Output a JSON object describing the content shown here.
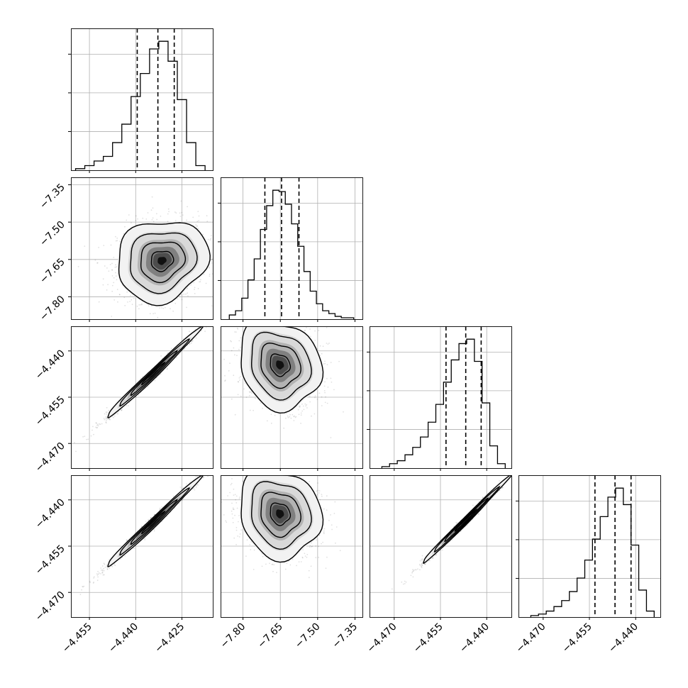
{
  "chart_data": {
    "type": "corner",
    "parameters": 4,
    "grid": true,
    "colors": {
      "line": "#000000",
      "grid": "#b0b0b0",
      "frame": "#000000"
    },
    "axes": [
      {
        "range": [
          -4.461,
          -4.415
        ],
        "ticks": [
          -4.455,
          -4.44,
          -4.425
        ],
        "tick_labels": [
          "−4.455",
          "−4.440",
          "−4.425"
        ]
      },
      {
        "range": [
          -7.89,
          -7.32
        ],
        "ticks": [
          -7.8,
          -7.65,
          -7.5,
          -7.35
        ],
        "tick_labels": [
          "−7.80",
          "−7.65",
          "−7.50",
          "−7.35"
        ]
      },
      {
        "range": [
          -4.478,
          -4.432
        ],
        "ticks": [
          -4.47,
          -4.455,
          -4.44
        ],
        "tick_labels": [
          "−4.470",
          "−4.455",
          "−4.440"
        ]
      },
      {
        "range": [
          -4.478,
          -4.432
        ],
        "ticks": [
          -4.47,
          -4.455,
          -4.44
        ],
        "tick_labels": [
          "−4.470",
          "−4.455",
          "−4.440"
        ]
      }
    ],
    "diagonal": [
      {
        "quantiles": [
          -4.4395,
          -4.4328,
          -4.4275
        ],
        "hist_edges": [
          -4.4595,
          -4.4565,
          -4.4535,
          -4.4505,
          -4.4475,
          -4.4445,
          -4.4415,
          -4.4385,
          -4.4355,
          -4.4325,
          -4.4295,
          -4.4265,
          -4.4235,
          -4.4205,
          -4.4175
        ],
        "hist_counts": [
          1,
          3,
          6,
          9,
          18,
          30,
          48,
          63,
          79,
          84,
          71,
          46,
          18,
          3
        ]
      },
      {
        "quantiles": [
          -7.712,
          -7.645,
          -7.575
        ],
        "hist_edges": [
          -7.855,
          -7.83,
          -7.805,
          -7.78,
          -7.755,
          -7.73,
          -7.705,
          -7.68,
          -7.655,
          -7.63,
          -7.605,
          -7.58,
          -7.555,
          -7.53,
          -7.505,
          -7.48,
          -7.455,
          -7.43,
          -7.405,
          -7.38,
          -7.355
        ],
        "hist_counts": [
          3,
          6,
          15,
          28,
          43,
          64,
          81,
          92,
          91,
          82,
          68,
          52,
          34,
          20,
          11,
          6,
          4,
          2,
          1,
          1
        ]
      },
      {
        "quantiles": [
          -4.4532,
          -4.4468,
          -4.4418
        ],
        "hist_edges": [
          -4.474,
          -4.4715,
          -4.469,
          -4.4665,
          -4.464,
          -4.4615,
          -4.459,
          -4.4565,
          -4.454,
          -4.4515,
          -4.449,
          -4.4465,
          -4.444,
          -4.4415,
          -4.439,
          -4.4365,
          -4.434
        ],
        "hist_counts": [
          1,
          3,
          5,
          9,
          14,
          21,
          31,
          43,
          58,
          73,
          84,
          87,
          72,
          44,
          15,
          3
        ]
      },
      {
        "quantiles": [
          -4.4532,
          -4.4467,
          -4.4415
        ],
        "hist_edges": [
          -4.474,
          -4.4715,
          -4.469,
          -4.4665,
          -4.464,
          -4.4615,
          -4.459,
          -4.4565,
          -4.454,
          -4.4515,
          -4.449,
          -4.4465,
          -4.444,
          -4.4415,
          -4.439,
          -4.4365,
          -4.434
        ],
        "hist_counts": [
          1,
          2,
          4,
          7,
          11,
          17,
          26,
          38,
          52,
          67,
          80,
          86,
          75,
          48,
          18,
          4
        ]
      }
    ],
    "pairs": [
      {
        "row": 1,
        "col": 0,
        "center": [
          -4.4315,
          -7.655
        ],
        "sd": [
          0.0072,
          0.08
        ],
        "corr": 0.12
      },
      {
        "row": 2,
        "col": 0,
        "center": [
          -4.4345,
          -4.4475
        ],
        "sd": [
          0.0075,
          0.0072
        ],
        "corr": 0.992
      },
      {
        "row": 2,
        "col": 1,
        "center": [
          -7.652,
          -4.4445
        ],
        "sd": [
          0.08,
          0.007
        ],
        "corr": -0.15
      },
      {
        "row": 3,
        "col": 0,
        "center": [
          -4.4345,
          -4.4475
        ],
        "sd": [
          0.0075,
          0.0072
        ],
        "corr": 0.992
      },
      {
        "row": 3,
        "col": 1,
        "center": [
          -7.652,
          -4.4445
        ],
        "sd": [
          0.08,
          0.007
        ],
        "corr": -0.12
      },
      {
        "row": 3,
        "col": 2,
        "center": [
          -4.447,
          -4.4468
        ],
        "sd": [
          0.007,
          0.007
        ],
        "corr": 0.995
      }
    ]
  }
}
